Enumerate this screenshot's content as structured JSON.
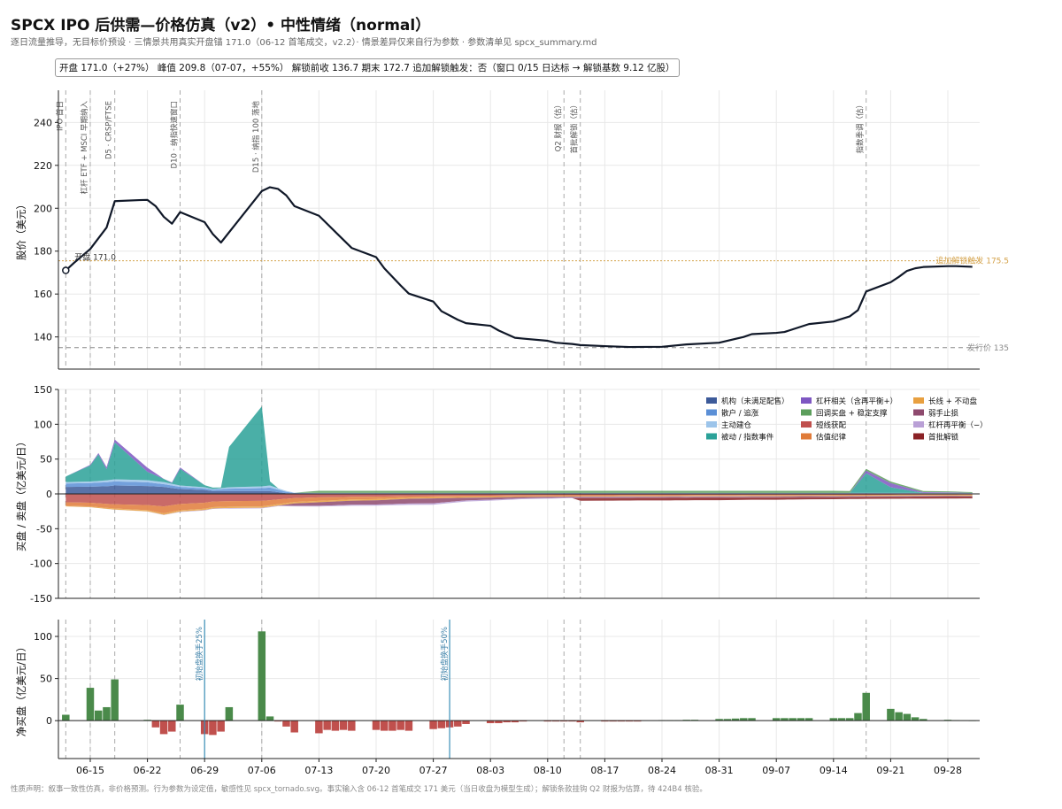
{
  "header": {
    "title": "SPCX IPO 后供需—价格仿真（v2）• 中性情绪（normal）",
    "subtitle": "逐日流量推导，无目标价预设 · 三情景共用真实开盘锚 171.0（06-12 首笔成交，v2.2）· 情景差异仅来自行为参数 · 参数清单见 spcx_summary.md",
    "summary": "开盘 171.0（+27%）  峰值 209.8（07-07，+55%）  解锁前收 136.7 期末 172.7 追加解锁触发：否（窗口 0/15 日达标 → 解锁基数 9.12 亿股）"
  },
  "footer": "性质声明：叙事一致性仿真，非价格预测。行为参数为设定值，敏感性见 spcx_tornado.svg。事实输入含 06-12 首笔成交 171 美元（当日收盘为模型生成）；解锁条款挂钩 Q2 财报为估算，待 424B4 核验。",
  "chart_data": [
    {
      "type": "line",
      "panel": "price",
      "ylabel": "股价（美元）",
      "ylim": [
        125,
        255
      ],
      "yticks": [
        140,
        160,
        180,
        200,
        220,
        240
      ],
      "x_start": "06-12",
      "x_end": "10-01",
      "xticks": [
        "06-15",
        "06-22",
        "06-29",
        "07-06",
        "07-13",
        "07-20",
        "07-27",
        "08-03",
        "08-10",
        "08-17",
        "08-24",
        "08-31",
        "09-07",
        "09-14",
        "09-21",
        "09-28"
      ],
      "series": [
        {
          "points": [
            [
              "06-12",
              171.0
            ],
            [
              "06-13",
              174.5
            ],
            [
              "06-15",
              181
            ],
            [
              "06-16",
              186
            ],
            [
              "06-17",
              191
            ],
            [
              "06-18",
              203.3
            ],
            [
              "06-21",
              203.8
            ],
            [
              "06-22",
              203.9
            ],
            [
              "06-23",
              201
            ],
            [
              "06-24",
              196
            ],
            [
              "06-25",
              192.8
            ],
            [
              "06-26",
              198.2
            ],
            [
              "06-29",
              193.5
            ],
            [
              "06-30",
              188
            ],
            [
              "07-01",
              184
            ],
            [
              "07-06",
              208
            ],
            [
              "07-07",
              209.8
            ],
            [
              "07-08",
              209
            ],
            [
              "07-09",
              206
            ],
            [
              "07-10",
              201
            ],
            [
              "07-13",
              196.5
            ],
            [
              "07-15",
              189
            ],
            [
              "07-17",
              181.5
            ],
            [
              "07-20",
              177.2
            ],
            [
              "07-21",
              172
            ],
            [
              "07-23",
              164
            ],
            [
              "07-24",
              160.2
            ],
            [
              "07-27",
              156.5
            ],
            [
              "07-28",
              152
            ],
            [
              "07-30",
              148
            ],
            [
              "07-31",
              146.4
            ],
            [
              "08-03",
              145.2
            ],
            [
              "08-04",
              143
            ],
            [
              "08-06",
              139.6
            ],
            [
              "08-07",
              139.2
            ],
            [
              "08-10",
              138.2
            ],
            [
              "08-11",
              137.3
            ],
            [
              "08-13",
              136.7
            ],
            [
              "08-14",
              136.2
            ],
            [
              "08-17",
              135.7
            ],
            [
              "08-20",
              135.3
            ],
            [
              "08-24",
              135.4
            ],
            [
              "08-27",
              136.5
            ],
            [
              "08-31",
              137.3
            ],
            [
              "09-03",
              140
            ],
            [
              "09-04",
              141.3
            ],
            [
              "09-07",
              141.9
            ],
            [
              "09-08",
              142.3
            ],
            [
              "09-11",
              146
            ],
            [
              "09-14",
              147.2
            ],
            [
              "09-16",
              149.6
            ],
            [
              "09-17",
              152.5
            ],
            [
              "09-18",
              161.2
            ],
            [
              "09-21",
              165.5
            ],
            [
              "09-22",
              168
            ],
            [
              "09-23",
              170.8
            ],
            [
              "09-24",
              172
            ],
            [
              "09-25",
              172.6
            ],
            [
              "09-28",
              173
            ],
            [
              "09-29",
              173
            ],
            [
              "10-01",
              172.7
            ]
          ]
        }
      ],
      "hlines": [
        {
          "value": 175.5,
          "label": "追加解锁触发 175.5",
          "style": "dotted",
          "color": "#d4a24a"
        },
        {
          "value": 135,
          "label": "发行价 135",
          "style": "dashed",
          "color": "#888888"
        }
      ],
      "annotations": [
        {
          "x": "06-12",
          "y": 171.0,
          "text": "开盘 171.0"
        }
      ],
      "events": [
        {
          "date": "06-12",
          "label": "IPO 首日"
        },
        {
          "date": "06-15",
          "label": "杠杆 ETF + MSCI 早期纳入"
        },
        {
          "date": "06-18",
          "label": "D5 · CRSP/FTSE"
        },
        {
          "date": "06-26",
          "label": "D10 · 纳指快速窗口"
        },
        {
          "date": "07-06",
          "label": "D15 · 纳指 100 落地"
        },
        {
          "date": "08-12",
          "label": "Q2 财报（估）"
        },
        {
          "date": "08-14",
          "label": "首批解锁（估）"
        },
        {
          "date": "09-18",
          "label": "指数季调（估）"
        }
      ]
    },
    {
      "type": "area",
      "panel": "flows",
      "ylabel": "买盘 / 卖盘（亿美元/日）",
      "ylim": [
        -150,
        150
      ],
      "yticks": [
        -150,
        -100,
        -50,
        0,
        50,
        100,
        150
      ],
      "legend_position": "top-right",
      "series": [
        {
          "name": "机构（未满足配售）",
          "color": "#3c5a99",
          "side": "buy"
        },
        {
          "name": "散户 / 追涨",
          "color": "#5b8fd6",
          "side": "buy"
        },
        {
          "name": "主动建仓",
          "color": "#9cc4ea",
          "side": "buy"
        },
        {
          "name": "被动 / 指数事件",
          "color": "#2aa198",
          "side": "buy"
        },
        {
          "name": "杠杆相关（含再平衡+）",
          "color": "#7e57c2",
          "side": "buy"
        },
        {
          "name": "回调买盘 + 稳定支撑",
          "color": "#5c9e5c",
          "side": "buy"
        },
        {
          "name": "短线获配",
          "color": "#c0504d",
          "side": "sell"
        },
        {
          "name": "估值纪律",
          "color": "#e07b39",
          "side": "sell"
        },
        {
          "name": "长线 + 不动盘",
          "color": "#e8a040",
          "side": "sell"
        },
        {
          "name": "弱手止损",
          "color": "#8e4a6e",
          "side": "sell"
        },
        {
          "name": "杠杆再平衡（−）",
          "color": "#b9a0d6",
          "side": "sell"
        },
        {
          "name": "首批解锁",
          "color": "#8b2226",
          "side": "sell"
        }
      ]
    },
    {
      "type": "bar",
      "panel": "net",
      "ylabel": "净买盘（亿美元/日）",
      "ylim": [
        -45,
        120
      ],
      "yticks": [
        0,
        50,
        100
      ],
      "vmarkers": [
        {
          "date": "06-29",
          "label": "初始盘换手25%"
        },
        {
          "date": "07-29",
          "label": "初始盘换手50%"
        }
      ],
      "bars": [
        [
          "06-12",
          7
        ],
        [
          "06-15",
          39
        ],
        [
          "06-16",
          12
        ],
        [
          "06-17",
          16
        ],
        [
          "06-18",
          49
        ],
        [
          "06-22",
          1
        ],
        [
          "06-23",
          -8
        ],
        [
          "06-24",
          -16
        ],
        [
          "06-25",
          -13
        ],
        [
          "06-26",
          19
        ],
        [
          "06-29",
          -16
        ],
        [
          "06-30",
          -17
        ],
        [
          "07-01",
          -13
        ],
        [
          "07-02",
          16
        ],
        [
          "07-06",
          106
        ],
        [
          "07-07",
          5
        ],
        [
          "07-08",
          -1
        ],
        [
          "07-09",
          -7
        ],
        [
          "07-10",
          -14
        ],
        [
          "07-13",
          -15
        ],
        [
          "07-14",
          -11
        ],
        [
          "07-15",
          -12
        ],
        [
          "07-16",
          -11
        ],
        [
          "07-17",
          -12
        ],
        [
          "07-20",
          -11
        ],
        [
          "07-21",
          -12
        ],
        [
          "07-22",
          -12
        ],
        [
          "07-23",
          -11
        ],
        [
          "07-24",
          -12
        ],
        [
          "07-27",
          -10
        ],
        [
          "07-28",
          -9
        ],
        [
          "07-29",
          -8
        ],
        [
          "07-30",
          -7
        ],
        [
          "07-31",
          -4
        ],
        [
          "08-03",
          -3
        ],
        [
          "08-04",
          -3
        ],
        [
          "08-05",
          -2
        ],
        [
          "08-06",
          -2
        ],
        [
          "08-07",
          -1
        ],
        [
          "08-10",
          -1
        ],
        [
          "08-11",
          -1
        ],
        [
          "08-12",
          -1
        ],
        [
          "08-13",
          -1
        ],
        [
          "08-14",
          -2
        ],
        [
          "08-17",
          -1
        ],
        [
          "08-18",
          -1
        ],
        [
          "08-19",
          -1
        ],
        [
          "08-20",
          -1
        ],
        [
          "08-21",
          -1
        ],
        [
          "08-24",
          0.5
        ],
        [
          "08-25",
          0.5
        ],
        [
          "08-26",
          0.5
        ],
        [
          "08-27",
          1
        ],
        [
          "08-28",
          1
        ],
        [
          "08-31",
          2
        ],
        [
          "09-01",
          2
        ],
        [
          "09-02",
          2.5
        ],
        [
          "09-03",
          3
        ],
        [
          "09-04",
          3
        ],
        [
          "09-07",
          3
        ],
        [
          "09-08",
          3
        ],
        [
          "09-09",
          3
        ],
        [
          "09-10",
          3
        ],
        [
          "09-11",
          3
        ],
        [
          "09-14",
          3
        ],
        [
          "09-15",
          3
        ],
        [
          "09-16",
          3
        ],
        [
          "09-17",
          9
        ],
        [
          "09-18",
          33
        ],
        [
          "09-21",
          14
        ],
        [
          "09-22",
          10
        ],
        [
          "09-23",
          8
        ],
        [
          "09-24",
          4
        ],
        [
          "09-25",
          2
        ],
        [
          "09-28",
          1
        ],
        [
          "09-29",
          0.5
        ],
        [
          "09-30",
          0.3
        ],
        [
          "10-01",
          0.2
        ]
      ]
    }
  ]
}
